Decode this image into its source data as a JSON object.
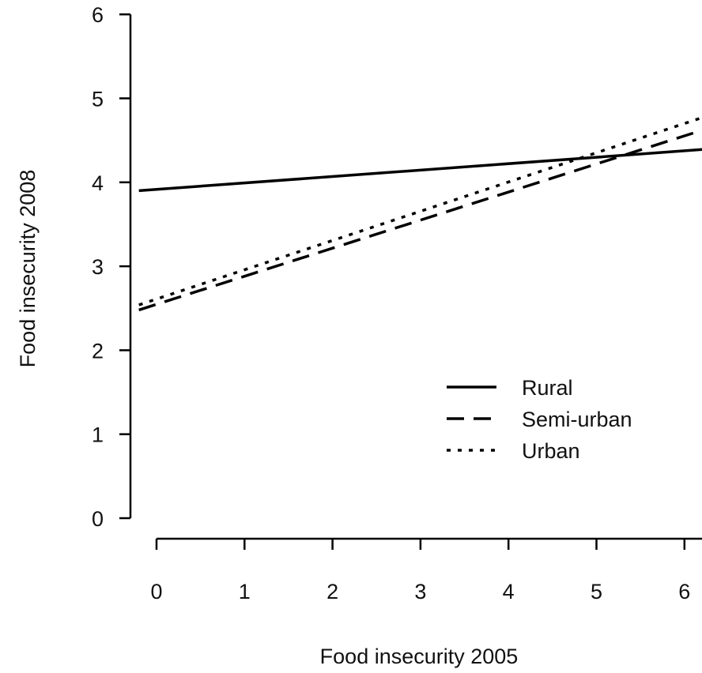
{
  "chart_data": {
    "type": "line",
    "title": "",
    "xlabel": "Food insecurity 2005",
    "ylabel": "Food insecurity 2008",
    "xlim": [
      -0.2,
      6.2
    ],
    "ylim": [
      0,
      6
    ],
    "x_ticks": [
      0,
      1,
      2,
      3,
      4,
      5,
      6
    ],
    "y_ticks": [
      0,
      1,
      2,
      3,
      4,
      5,
      6
    ],
    "grid": false,
    "legend_position": "center-right",
    "series": [
      {
        "name": "Rural",
        "line_style": "solid",
        "color": "#000000",
        "x": [
          -0.2,
          6.2
        ],
        "y": [
          3.9,
          4.39
        ]
      },
      {
        "name": "Semi-urban",
        "line_style": "dashed",
        "color": "#000000",
        "x": [
          -0.2,
          6.2
        ],
        "y": [
          2.48,
          4.62
        ]
      },
      {
        "name": "Urban",
        "line_style": "dotted",
        "color": "#000000",
        "x": [
          -0.2,
          6.2
        ],
        "y": [
          2.54,
          4.77
        ]
      }
    ]
  }
}
